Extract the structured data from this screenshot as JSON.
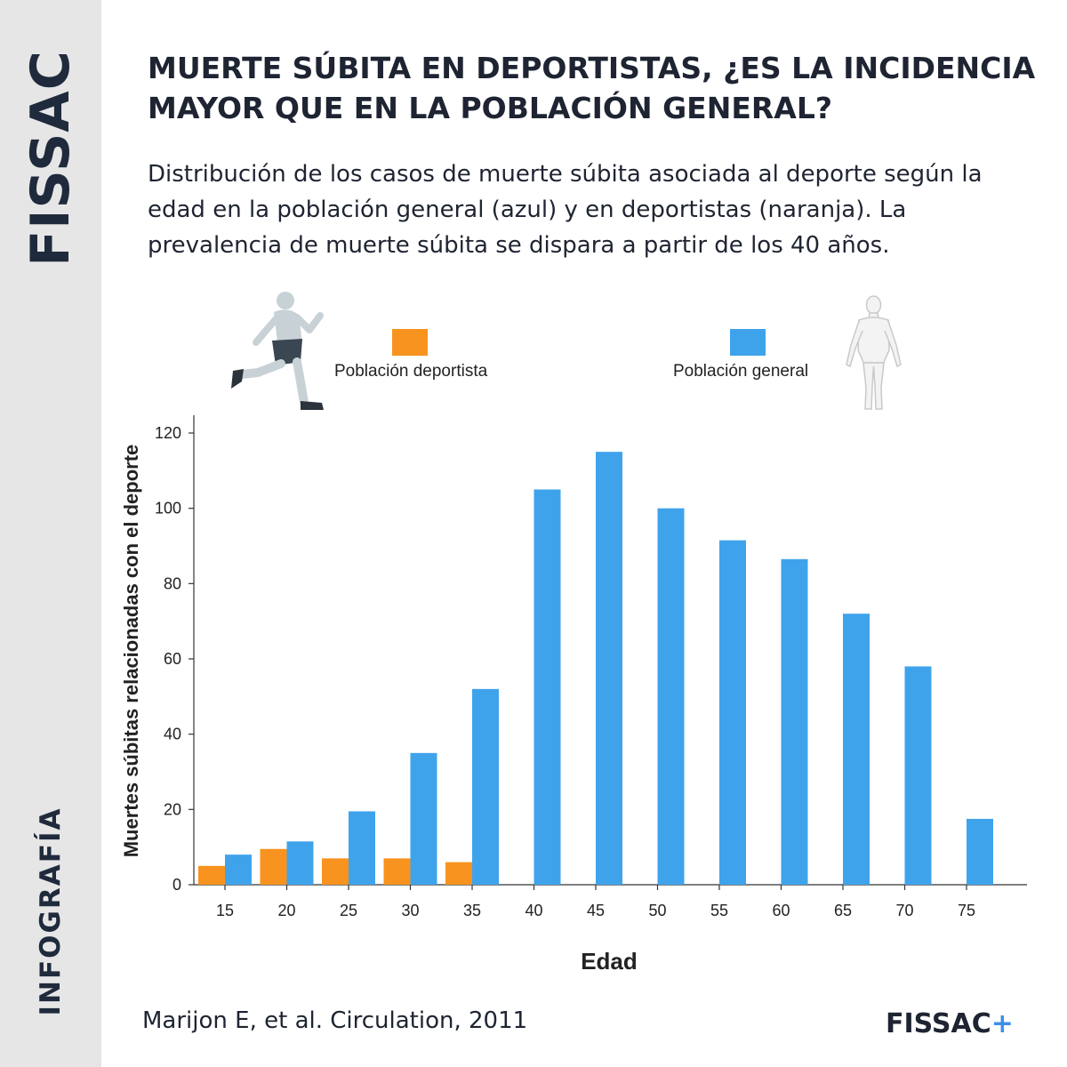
{
  "sidebar": {
    "brand": "FISSAC",
    "section": "INFOGRAFÍA"
  },
  "header": {
    "title": "MUERTE SÚBITA EN DEPORTISTAS, ¿ES LA INCIDENCIA MAYOR QUE EN LA POBLACIÓN GENERAL?",
    "subtitle": "Distribución de los casos de muerte súbita asociada al deporte según la edad en la población general (azul) y en deportistas (naranja). La prevalencia de muerte súbita se dispara a partir de los 40 años."
  },
  "icons": {
    "athlete": "running-athlete-icon",
    "general": "human-body-icon"
  },
  "colors": {
    "athletes": "#f7931e",
    "general": "#3fa3eb",
    "text": "#1e2432",
    "sidebar": "#e6e6e6"
  },
  "chart_data": {
    "type": "bar",
    "categories": [
      "15",
      "20",
      "25",
      "30",
      "35",
      "40",
      "45",
      "50",
      "55",
      "60",
      "65",
      "70",
      "75"
    ],
    "series": [
      {
        "name": "Población deportista",
        "color": "#f7931e",
        "values": [
          5,
          9.5,
          7,
          7,
          6,
          0,
          0,
          0,
          0,
          0,
          0,
          0,
          0
        ]
      },
      {
        "name": "Población general",
        "color": "#3fa3eb",
        "values": [
          8,
          11.5,
          19.5,
          35,
          52,
          105,
          115,
          100,
          91.5,
          86.5,
          72,
          58,
          17.5
        ]
      }
    ],
    "xlabel": "Edad",
    "ylabel": "Muertes súbitas relacionadas con el deporte",
    "ylim": [
      0,
      120
    ],
    "yticks": [
      "0",
      "20",
      "40",
      "60",
      "80",
      "100",
      "120"
    ],
    "legend_position": "top",
    "grid": false
  },
  "footer": {
    "source": "Marijon E, et al. Circulation, 2011",
    "logo": "FISSAC",
    "logo_plus": "+"
  }
}
